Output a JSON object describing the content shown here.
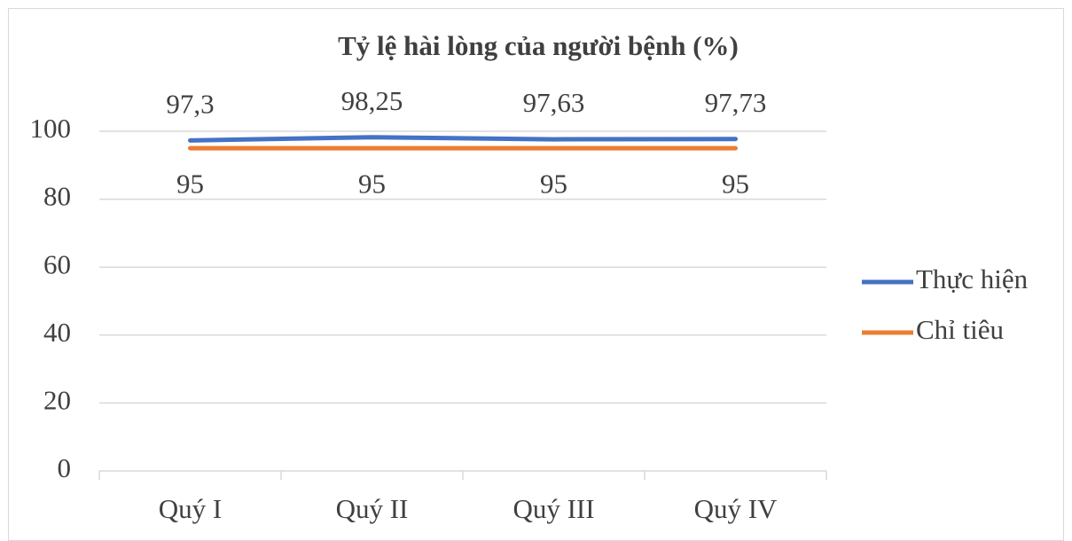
{
  "chart_data": {
    "type": "line",
    "title": "Tỷ lệ hài lòng của người bệnh (%)",
    "categories": [
      "Quý I",
      "Quý II",
      "Quý III",
      "Quý IV"
    ],
    "series": [
      {
        "name": "Thực hiện",
        "color": "#4472c4",
        "values": [
          97.3,
          98.25,
          97.63,
          97.73
        ],
        "value_labels": [
          "97,3",
          "98,25",
          "97,63",
          "97,73"
        ]
      },
      {
        "name": "Chỉ tiêu",
        "color": "#ed7d31",
        "values": [
          95,
          95,
          95,
          95
        ]
      }
    ],
    "ylim": [
      0,
      100
    ],
    "yticks": [
      0,
      20,
      40,
      60,
      80,
      100
    ],
    "grid": true,
    "legend": "right"
  }
}
